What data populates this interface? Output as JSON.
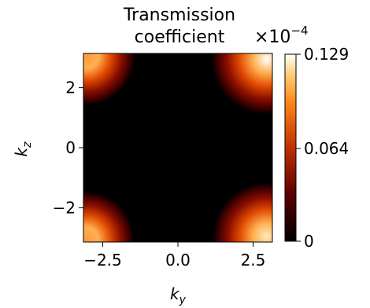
{
  "chart_data": {
    "type": "heatmap",
    "title_lines": [
      "Transmission",
      "coefficient"
    ],
    "scale_label": "×10",
    "scale_exponent": "−4",
    "xlabel": {
      "base": "k",
      "sub": "y"
    },
    "ylabel": {
      "base": "k",
      "sub": "z"
    },
    "xlim": [
      -3.1416,
      3.1416
    ],
    "ylim": [
      -3.1416,
      3.1416
    ],
    "x_ticks": [
      {
        "value": -2.5,
        "label": "−2.5"
      },
      {
        "value": 0.0,
        "label": "0.0"
      },
      {
        "value": 2.5,
        "label": "2.5"
      }
    ],
    "y_ticks": [
      {
        "value": 2,
        "label": "2"
      },
      {
        "value": 0,
        "label": "0"
      },
      {
        "value": -2,
        "label": "−2"
      }
    ],
    "colorbar": {
      "colormap": "gist_heat",
      "min": 0,
      "max": 0.129,
      "ticks": [
        {
          "value": 0.129,
          "label": "0.129"
        },
        {
          "value": 0.064,
          "label": "0.064"
        },
        {
          "value": 0,
          "label": "0"
        }
      ]
    },
    "hotspots": [
      {
        "ky": 2.95,
        "kz": 2.95,
        "peak": 0.129
      },
      {
        "ky": -3.05,
        "kz": 3.05,
        "peak": 0.085
      },
      {
        "ky": 2.95,
        "kz": -2.95,
        "peak": 0.118
      },
      {
        "ky": -3.05,
        "kz": -3.05,
        "peak": 0.075
      }
    ]
  }
}
